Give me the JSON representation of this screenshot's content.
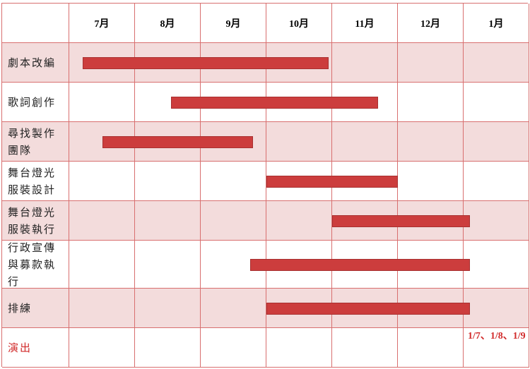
{
  "chart_data": {
    "type": "gantt",
    "columns": [
      "7月",
      "8月",
      "9月",
      "10月",
      "11月",
      "12月",
      "1月"
    ],
    "tasks": [
      {
        "label": "劇本改編",
        "start": 0.2,
        "end": 3.95
      },
      {
        "label": "歌詞創作",
        "start": 1.55,
        "end": 4.7
      },
      {
        "label": "尋找製作團隊",
        "start": 0.5,
        "end": 2.8
      },
      {
        "label": "舞台燈光服裝設計",
        "start": 3.0,
        "end": 5.0
      },
      {
        "label": "舞台燈光服裝執行",
        "start": 4.0,
        "end": 6.1
      },
      {
        "label": "行政宣傳與募款執行",
        "start": 2.75,
        "end": 6.1
      },
      {
        "label": "排練",
        "start": 3.0,
        "end": 6.1
      }
    ],
    "milestone": {
      "label": "演出",
      "note": "1/7、1/8、1/9",
      "column": 6
    },
    "colors": {
      "bar": "#cc3d3d",
      "grid": "#d86f6f",
      "shade": "#f3dcdc",
      "highlight": "#d12a2a"
    }
  }
}
